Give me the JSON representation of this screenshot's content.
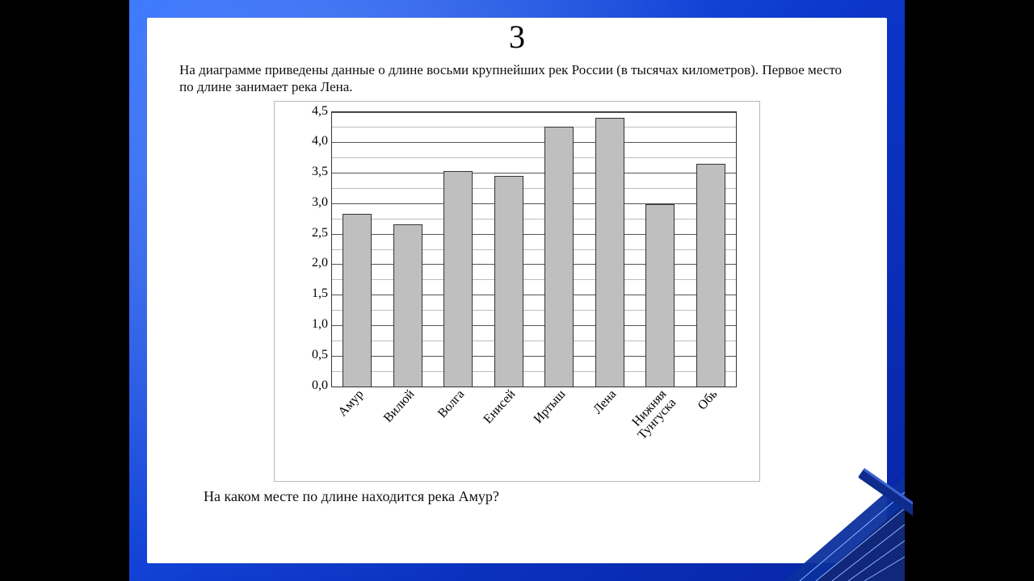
{
  "slide": {
    "number": "3",
    "prompt": "На диаграмме приведены данные о длине восьми крупнейших рек России (в тысячах километров). Первое место по длине занимает река Лена.",
    "question": "На каком месте по длине находится река Амур?"
  },
  "chart": {
    "type": "bar",
    "categories": [
      "Амур",
      "Вилюй",
      "Волга",
      "Енисей",
      "Иртыш",
      "Лена",
      "Нижняя\nТунгуска",
      "Обь"
    ],
    "values": [
      2.82,
      2.65,
      3.53,
      3.45,
      4.25,
      4.4,
      2.99,
      3.65
    ],
    "ymin": 0.0,
    "ymax": 4.5,
    "ytick_major_step": 0.5,
    "ytick_minor_step": 0.25,
    "bar_fill": "#bfbfbf",
    "bar_border": "#333333",
    "bar_width_rel": 0.58,
    "grid_major_color": "#555555",
    "grid_minor_color": "#bbbbbb",
    "plot_border_color": "#333333",
    "chart_background": "#ffffff",
    "axis_font_size_pt": 16,
    "axis_font_family": "Times New Roman",
    "title_font_size_pt": 40,
    "body_font_size_pt": 17
  },
  "slide_style": {
    "content_bg": "#ffffff",
    "frame_gradient_from": "#2a6cff",
    "frame_gradient_to": "#0824a3",
    "pillarbox": "#000000"
  }
}
